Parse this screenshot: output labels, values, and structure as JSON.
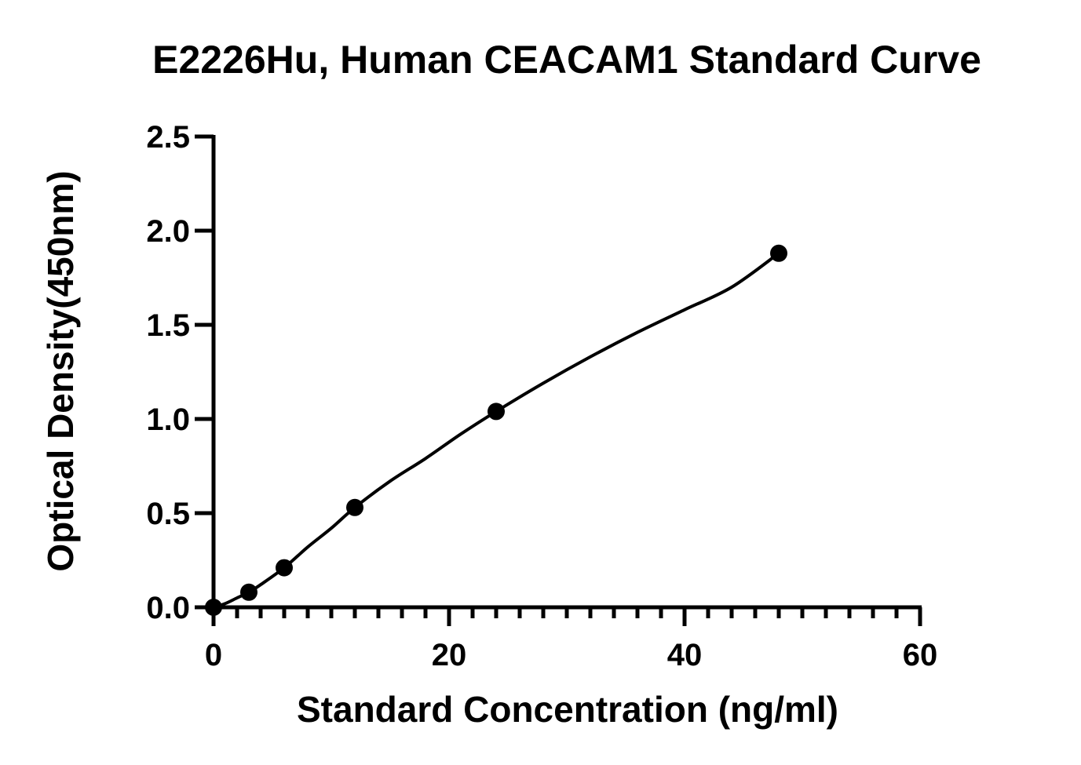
{
  "chart_data": {
    "type": "scatter",
    "title": "E2226Hu, Human CEACAM1 Standard Curve",
    "xlabel": "Standard Concentration (ng/ml)",
    "ylabel": "Optical Density(450nm)",
    "xlim": [
      0,
      60
    ],
    "ylim": [
      0,
      2.5
    ],
    "x_ticks": [
      "0",
      "20",
      "40",
      "60"
    ],
    "y_ticks": [
      "0.0",
      "0.5",
      "1.0",
      "1.5",
      "2.0",
      "2.5"
    ],
    "x_tick_values": [
      0,
      20,
      40,
      60
    ],
    "y_tick_values": [
      0,
      0.5,
      1.0,
      1.5,
      2.0,
      2.5
    ],
    "x_minor_step": 2,
    "grid": false,
    "series": [
      {
        "x": [
          0,
          3,
          6,
          12,
          24,
          48
        ],
        "y": [
          0.0,
          0.08,
          0.21,
          0.53,
          1.04,
          1.88
        ]
      }
    ],
    "fit_curve": {
      "x": [
        0,
        1,
        2,
        3,
        4,
        6,
        8,
        10,
        12,
        15,
        18,
        21,
        24,
        28,
        32,
        36,
        40,
        44,
        48
      ],
      "y": [
        0.0,
        0.02,
        0.05,
        0.08,
        0.12,
        0.21,
        0.32,
        0.42,
        0.53,
        0.67,
        0.79,
        0.92,
        1.04,
        1.19,
        1.33,
        1.46,
        1.58,
        1.7,
        1.88
      ]
    },
    "colors": {
      "marks": "#000000",
      "background": "#ffffff"
    }
  }
}
